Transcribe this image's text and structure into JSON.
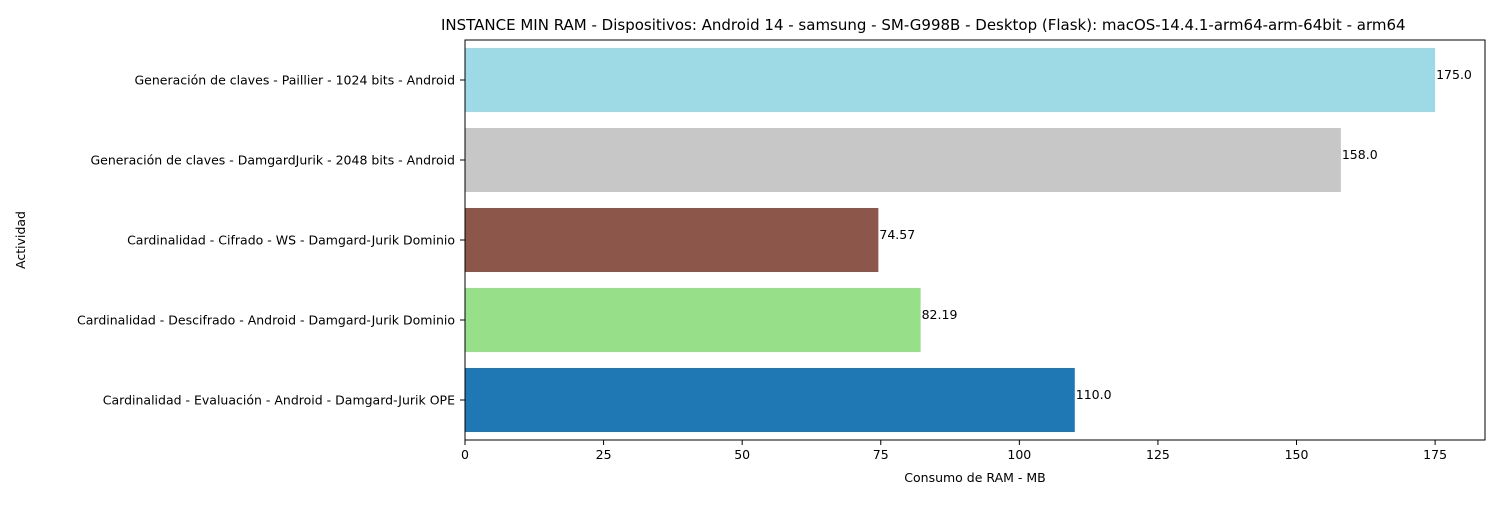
{
  "chart_data": {
    "type": "bar",
    "orientation": "horizontal",
    "title": "INSTANCE MIN RAM - Dispositivos: Android 14 - samsung - SM-G998B - Desktop (Flask): macOS-14.4.1-arm64-arm-64bit - arm64",
    "xlabel": "Consumo de RAM - MB",
    "ylabel": "Actividad",
    "xlim": [
      0,
      184
    ],
    "xticks": [
      0,
      25,
      50,
      75,
      100,
      125,
      150,
      175
    ],
    "grid": false,
    "legend": "none",
    "categories": [
      "Generación de claves - Paillier - 1024 bits - Android",
      "Generación de claves - DamgardJurik - 2048 bits - Android",
      "Cardinalidad - Cifrado - WS - Damgard-Jurik Dominio",
      "Cardinalidad - Descifrado - Android - Damgard-Jurik Dominio",
      "Cardinalidad - Evaluación - Android - Damgard-Jurik OPE"
    ],
    "values": [
      175.0,
      158.0,
      74.57,
      82.19,
      110.0
    ],
    "value_labels": [
      "175.0",
      "158.0",
      "74.57",
      "82.19",
      "110.0"
    ],
    "colors": [
      "#9edae5",
      "#c7c7c7",
      "#8c564b",
      "#98df8a",
      "#1f77b4"
    ]
  }
}
